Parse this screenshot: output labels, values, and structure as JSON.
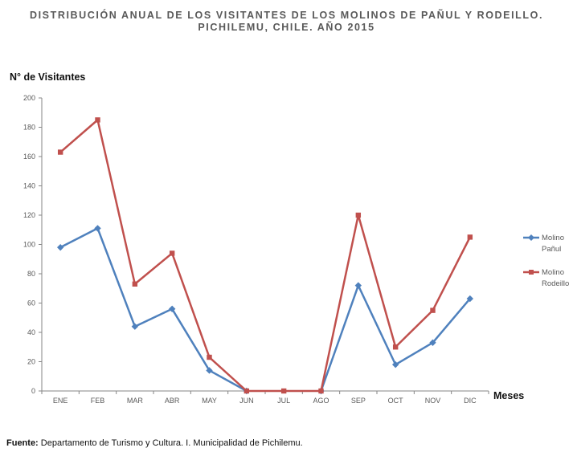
{
  "chart_data": {
    "type": "line",
    "title_line1": "DISTRIBUCIÓN ANUAL DE LOS VISITANTES DE LOS MOLINOS DE PAÑUL Y RODEILLO.",
    "title_line2": "PICHILEMU, CHILE. AÑO 2015",
    "ylabel": "N° de Visitantes",
    "xlabel": "Meses",
    "ylim": [
      0,
      200
    ],
    "yticks": [
      0,
      20,
      40,
      60,
      80,
      100,
      120,
      140,
      160,
      180,
      200
    ],
    "categories": [
      "ENE",
      "FEB",
      "MAR",
      "ABR",
      "MAY",
      "JUN",
      "JUL",
      "AGO",
      "SEP",
      "OCT",
      "NOV",
      "DIC"
    ],
    "series": [
      {
        "name_line1": "Molino",
        "name_line2": "Pañul",
        "color": "#4F81BD",
        "marker": "diamond",
        "values": [
          98,
          111,
          44,
          56,
          14,
          0,
          null,
          0,
          72,
          18,
          33,
          63
        ]
      },
      {
        "name_line1": "Molino",
        "name_line2": "Rodeillo",
        "color": "#C0504D",
        "marker": "square",
        "values": [
          163,
          185,
          73,
          94,
          23,
          0,
          0,
          0,
          120,
          30,
          55,
          105
        ]
      }
    ],
    "grid": false,
    "legend_position": "right"
  },
  "source": {
    "label": "Fuente:",
    "text": " Departamento de Turismo y Cultura. I.  Municipalidad de  Pichilemu."
  }
}
